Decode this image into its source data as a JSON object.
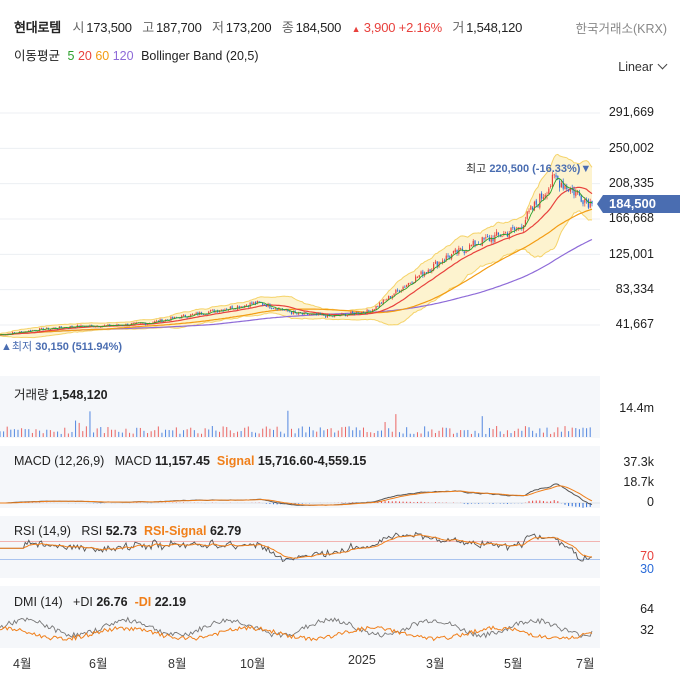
{
  "header": {
    "name": "현대로템",
    "open_label": "시",
    "open": "173,500",
    "high_label": "고",
    "high": "187,700",
    "low_label": "저",
    "low": "173,200",
    "close_label": "종",
    "close": "184,500",
    "change_arrow": "▲",
    "change": "3,900 +2.16%",
    "volume_label": "거",
    "volume": "1,548,120",
    "exchange": "한국거래소(KRX)"
  },
  "indicators": {
    "ma_label": "이동평균",
    "ma": [
      {
        "period": "5",
        "color": "#2ca02c"
      },
      {
        "period": "20",
        "color": "#e8413d"
      },
      {
        "period": "60",
        "color": "#f39c12"
      },
      {
        "period": "120",
        "color": "#8e6bd8"
      }
    ],
    "bollinger": "Bollinger Band (20,5)",
    "scale_mode": "Linear"
  },
  "price_panel": {
    "y_ticks": [
      "291,669",
      "250,002",
      "208,335",
      "166,668",
      "125,001",
      "83,334",
      "41,667"
    ],
    "current_price": "184,500",
    "high_annotation_label": "최고",
    "high_annotation_value": "220,500 (-16.33%)▼",
    "low_annotation_label": "▲최저",
    "low_annotation_value": "30,150 (511.94%)"
  },
  "volume_panel": {
    "label": "거래량",
    "value": "1,548,120",
    "y_tick": "14.4m"
  },
  "macd_panel": {
    "label": "MACD (12,26,9)",
    "macd_label": "MACD",
    "macd_value": "11,157.45",
    "signal_label": "Signal",
    "signal_value": "15,716.60-4,559.15",
    "y_ticks": [
      "37.3k",
      "18.7k",
      "0"
    ]
  },
  "rsi_panel": {
    "label": "RSI (14,9)",
    "rsi_label": "RSI",
    "rsi_value": "52.73",
    "signal_label": "RSI-Signal",
    "signal_value": "62.79",
    "y_ticks": [
      "70",
      "30"
    ]
  },
  "dmi_panel": {
    "label": "DMI (14)",
    "pdi_label": "+DI",
    "pdi_value": "26.76",
    "mdi_label": "-DI",
    "mdi_value": "22.19",
    "y_ticks": [
      "64",
      "32"
    ]
  },
  "x_axis": [
    "4월",
    "6월",
    "8월",
    "10월",
    "2025",
    "3월",
    "5월",
    "7월"
  ],
  "colors": {
    "up": "#e8413d",
    "down": "#2a6bd9",
    "band_fill": "#fdf3cf",
    "band_line": "#f5d36a",
    "ma5": "#2ca02c",
    "ma20": "#e8413d",
    "ma60": "#f39c12",
    "ma120": "#8e6bd8",
    "signal": "#f07f1a",
    "price_tag": "#4a6db1"
  },
  "chart_data": {
    "type": "candlestick",
    "ylim": [
      20000,
      310000
    ],
    "price_path": {
      "dates": [
        "2024-03",
        "2024-04",
        "2024-05",
        "2024-06",
        "2024-07",
        "2024-08",
        "2024-09",
        "2024-10",
        "2024-11",
        "2024-12",
        "2025-01",
        "2025-02",
        "2025-03",
        "2025-04",
        "2025-05",
        "2025-06",
        "2025-07"
      ],
      "close": [
        30150,
        36000,
        40000,
        41000,
        44000,
        52000,
        60000,
        68000,
        55000,
        52000,
        58000,
        90000,
        120000,
        140000,
        155000,
        215000,
        184500
      ]
    },
    "high": 220500,
    "low": 30150,
    "last": 184500,
    "volume_max": "14.4m",
    "macd": {
      "ylim": [
        -10000,
        37300
      ],
      "macd": 11157.45,
      "signal": 15716.6,
      "hist": -4559.15
    },
    "rsi": {
      "ylim": [
        0,
        100
      ],
      "levels": [
        70,
        30
      ],
      "rsi": 52.73,
      "signal": 62.79
    },
    "dmi": {
      "ylim": [
        0,
        80
      ],
      "pdi": 26.76,
      "mdi": 22.19
    }
  }
}
